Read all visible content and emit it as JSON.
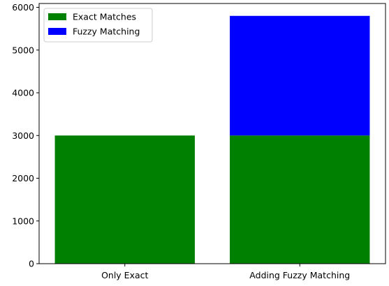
{
  "chart_data": {
    "type": "bar",
    "stacked": true,
    "categories": [
      "Only Exact",
      "Adding Fuzzy Matching"
    ],
    "series": [
      {
        "name": "Exact Matches",
        "values": [
          3000,
          3000
        ],
        "color": "#008000"
      },
      {
        "name": "Fuzzy Matching",
        "values": [
          0,
          2800
        ],
        "color": "#0000ff"
      }
    ],
    "ylim": [
      0,
      6090
    ],
    "yticks": [
      0,
      1000,
      2000,
      3000,
      4000,
      5000,
      6000
    ],
    "ytick_labels": [
      "0",
      "1000",
      "2000",
      "3000",
      "4000",
      "5000",
      "6000"
    ],
    "title": "",
    "xlabel": "",
    "ylabel": "",
    "legend_position": "top-left",
    "grid": false
  }
}
